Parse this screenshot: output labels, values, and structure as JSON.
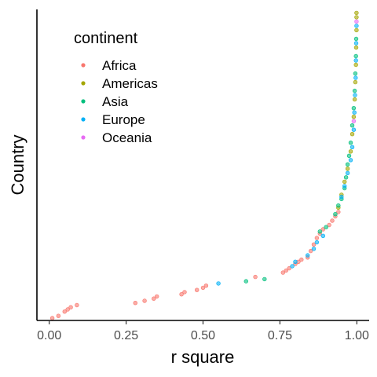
{
  "chart_data": {
    "type": "scatter",
    "xlabel": "r square",
    "ylabel": "Country",
    "xlim": [
      -0.04,
      1.04
    ],
    "xticks": [
      0,
      0.25,
      0.5,
      0.75,
      1
    ],
    "xtick_labels": [
      "0.00",
      "0.25",
      "0.50",
      "0.75",
      "1.00"
    ],
    "y_axis": "countries ranked by r square (ascending), no tick labels",
    "grid": false,
    "legend": {
      "title": "continent",
      "placement": "top-left"
    },
    "series": [
      {
        "name": "Africa",
        "color": "#F8766D",
        "points": [
          {
            "x": 0.01,
            "y": 1
          },
          {
            "x": 0.03,
            "y": 2
          },
          {
            "x": 0.05,
            "y": 4
          },
          {
            "x": 0.06,
            "y": 5
          },
          {
            "x": 0.07,
            "y": 6
          },
          {
            "x": 0.09,
            "y": 7
          },
          {
            "x": 0.28,
            "y": 8
          },
          {
            "x": 0.31,
            "y": 9
          },
          {
            "x": 0.34,
            "y": 10
          },
          {
            "x": 0.35,
            "y": 11
          },
          {
            "x": 0.43,
            "y": 12
          },
          {
            "x": 0.44,
            "y": 13
          },
          {
            "x": 0.48,
            "y": 14
          },
          {
            "x": 0.5,
            "y": 15
          },
          {
            "x": 0.51,
            "y": 16
          },
          {
            "x": 0.67,
            "y": 20
          },
          {
            "x": 0.76,
            "y": 22
          },
          {
            "x": 0.77,
            "y": 23
          },
          {
            "x": 0.78,
            "y": 24
          },
          {
            "x": 0.8,
            "y": 26
          },
          {
            "x": 0.81,
            "y": 27
          },
          {
            "x": 0.82,
            "y": 28
          },
          {
            "x": 0.84,
            "y": 29
          },
          {
            "x": 0.85,
            "y": 32
          },
          {
            "x": 0.86,
            "y": 35
          },
          {
            "x": 0.87,
            "y": 38
          },
          {
            "x": 0.88,
            "y": 40
          },
          {
            "x": 0.89,
            "y": 42
          },
          {
            "x": 0.91,
            "y": 44
          },
          {
            "x": 0.92,
            "y": 46
          },
          {
            "x": 0.93,
            "y": 48
          },
          {
            "x": 0.94,
            "y": 50
          }
        ]
      },
      {
        "name": "Americas",
        "color": "#A3A500",
        "points": [
          {
            "x": 0.94,
            "y": 52
          },
          {
            "x": 0.95,
            "y": 58
          },
          {
            "x": 0.96,
            "y": 64
          },
          {
            "x": 0.97,
            "y": 70
          },
          {
            "x": 0.98,
            "y": 78
          },
          {
            "x": 0.985,
            "y": 86
          },
          {
            "x": 0.99,
            "y": 94
          },
          {
            "x": 0.993,
            "y": 102
          },
          {
            "x": 0.995,
            "y": 110
          },
          {
            "x": 0.997,
            "y": 118
          },
          {
            "x": 0.998,
            "y": 126
          },
          {
            "x": 0.999,
            "y": 134
          },
          {
            "x": 0.999,
            "y": 140
          },
          {
            "x": 0.999,
            "y": 142
          }
        ]
      },
      {
        "name": "Asia",
        "color": "#00BF7D",
        "points": [
          {
            "x": 0.64,
            "y": 18
          },
          {
            "x": 0.7,
            "y": 19
          },
          {
            "x": 0.88,
            "y": 41
          },
          {
            "x": 0.9,
            "y": 43
          },
          {
            "x": 0.93,
            "y": 49
          },
          {
            "x": 0.94,
            "y": 53
          },
          {
            "x": 0.95,
            "y": 56
          },
          {
            "x": 0.96,
            "y": 61
          },
          {
            "x": 0.965,
            "y": 66
          },
          {
            "x": 0.97,
            "y": 72
          },
          {
            "x": 0.975,
            "y": 76
          },
          {
            "x": 0.98,
            "y": 82
          },
          {
            "x": 0.985,
            "y": 90
          },
          {
            "x": 0.99,
            "y": 98
          },
          {
            "x": 0.993,
            "y": 106
          },
          {
            "x": 0.995,
            "y": 114
          },
          {
            "x": 0.997,
            "y": 122
          },
          {
            "x": 0.998,
            "y": 130
          }
        ]
      },
      {
        "name": "Europe",
        "color": "#00B0F6",
        "points": [
          {
            "x": 0.55,
            "y": 17
          },
          {
            "x": 0.79,
            "y": 25
          },
          {
            "x": 0.8,
            "y": 27
          },
          {
            "x": 0.84,
            "y": 30
          },
          {
            "x": 0.86,
            "y": 33
          },
          {
            "x": 0.87,
            "y": 36
          },
          {
            "x": 0.89,
            "y": 39
          },
          {
            "x": 0.95,
            "y": 57
          },
          {
            "x": 0.96,
            "y": 62
          },
          {
            "x": 0.97,
            "y": 68
          },
          {
            "x": 0.98,
            "y": 74
          },
          {
            "x": 0.985,
            "y": 80
          },
          {
            "x": 0.99,
            "y": 88
          },
          {
            "x": 0.992,
            "y": 96
          },
          {
            "x": 0.994,
            "y": 104
          },
          {
            "x": 0.996,
            "y": 112
          },
          {
            "x": 0.997,
            "y": 120
          },
          {
            "x": 0.998,
            "y": 128
          },
          {
            "x": 0.999,
            "y": 136
          }
        ]
      },
      {
        "name": "Oceania",
        "color": "#E76BF3",
        "points": [
          {
            "x": 0.99,
            "y": 92
          },
          {
            "x": 0.999,
            "y": 138
          }
        ]
      }
    ]
  }
}
